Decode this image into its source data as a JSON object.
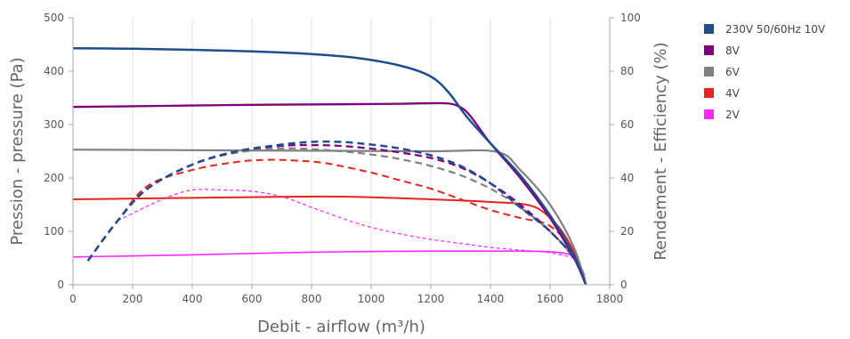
{
  "chart_data": {
    "type": "line",
    "xlabel": "Debit - airflow (m³/h)",
    "ylabel": "Pression - pressure (Pa)",
    "y2label": "Rendement - Efficiency (%)",
    "xlim": [
      0,
      1800
    ],
    "ylim": [
      0,
      500
    ],
    "y2lim": [
      0,
      100
    ],
    "x_ticks": [
      "0",
      "200",
      "400",
      "600",
      "800",
      "1000",
      "1200",
      "1400",
      "1600",
      "1800"
    ],
    "y_ticks": [
      "0",
      "100",
      "200",
      "300",
      "400",
      "500"
    ],
    "y2_ticks": [
      "0",
      "20",
      "40",
      "60",
      "80",
      "100"
    ],
    "grid": "vertical",
    "legend_position": "right",
    "series": [
      {
        "name": "230V 50/60Hz 10V",
        "color": "#1f4e8c",
        "pressure": [
          [
            0,
            443
          ],
          [
            200,
            442
          ],
          [
            400,
            440
          ],
          [
            600,
            437
          ],
          [
            800,
            432
          ],
          [
            950,
            425
          ],
          [
            1100,
            410
          ],
          [
            1200,
            390
          ],
          [
            1260,
            360
          ],
          [
            1320,
            315
          ],
          [
            1400,
            265
          ],
          [
            1500,
            205
          ],
          [
            1600,
            130
          ],
          [
            1680,
            55
          ],
          [
            1720,
            0
          ]
        ],
        "efficiency": [
          [
            50,
            9
          ],
          [
            150,
            24
          ],
          [
            250,
            36
          ],
          [
            400,
            45
          ],
          [
            550,
            50
          ],
          [
            700,
            52.5
          ],
          [
            800,
            53.5
          ],
          [
            900,
            53.5
          ],
          [
            1000,
            52.5
          ],
          [
            1100,
            51
          ],
          [
            1200,
            48.5
          ],
          [
            1300,
            44.5
          ],
          [
            1400,
            38
          ],
          [
            1500,
            29
          ],
          [
            1600,
            20
          ],
          [
            1680,
            10
          ],
          [
            1720,
            0
          ]
        ]
      },
      {
        "name": "8V",
        "color": "#800080",
        "pressure": [
          [
            0,
            333
          ],
          [
            300,
            335
          ],
          [
            600,
            337
          ],
          [
            900,
            338
          ],
          [
            1100,
            339
          ],
          [
            1240,
            340
          ],
          [
            1290,
            335
          ],
          [
            1330,
            318
          ],
          [
            1400,
            265
          ],
          [
            1500,
            200
          ],
          [
            1600,
            125
          ],
          [
            1680,
            50
          ],
          [
            1720,
            0
          ]
        ],
        "efficiency": [
          [
            50,
            9
          ],
          [
            150,
            24
          ],
          [
            250,
            36
          ],
          [
            400,
            45
          ],
          [
            550,
            50
          ],
          [
            700,
            52
          ],
          [
            800,
            52.3
          ],
          [
            900,
            52
          ],
          [
            1000,
            51
          ],
          [
            1100,
            49.5
          ],
          [
            1200,
            47.5
          ],
          [
            1300,
            44
          ],
          [
            1400,
            38
          ],
          [
            1500,
            30
          ],
          [
            1600,
            20
          ],
          [
            1680,
            10
          ],
          [
            1720,
            0
          ]
        ]
      },
      {
        "name": "6V",
        "color": "#808080",
        "pressure": [
          [
            0,
            253
          ],
          [
            400,
            252
          ],
          [
            800,
            251
          ],
          [
            1200,
            250
          ],
          [
            1420,
            249
          ],
          [
            1500,
            215
          ],
          [
            1600,
            150
          ],
          [
            1680,
            70
          ],
          [
            1720,
            0
          ]
        ],
        "efficiency": [
          [
            50,
            9
          ],
          [
            150,
            24
          ],
          [
            250,
            36
          ],
          [
            400,
            45
          ],
          [
            550,
            49.5
          ],
          [
            700,
            51
          ],
          [
            800,
            50.8
          ],
          [
            900,
            50
          ],
          [
            1000,
            48.8
          ],
          [
            1100,
            47
          ],
          [
            1200,
            44.5
          ],
          [
            1300,
            41
          ],
          [
            1400,
            36
          ],
          [
            1500,
            29
          ],
          [
            1600,
            20
          ],
          [
            1680,
            10
          ],
          [
            1720,
            0
          ]
        ]
      },
      {
        "name": "4V",
        "color": "#e8231f",
        "pressure": [
          [
            0,
            160
          ],
          [
            300,
            162
          ],
          [
            600,
            164
          ],
          [
            900,
            165
          ],
          [
            1200,
            160
          ],
          [
            1400,
            155
          ],
          [
            1520,
            150
          ],
          [
            1580,
            135
          ],
          [
            1640,
            100
          ],
          [
            1690,
            50
          ],
          [
            1720,
            0
          ]
        ],
        "efficiency": [
          [
            50,
            9
          ],
          [
            150,
            24
          ],
          [
            250,
            37
          ],
          [
            400,
            43
          ],
          [
            550,
            46
          ],
          [
            650,
            46.8
          ],
          [
            750,
            46.5
          ],
          [
            850,
            45.5
          ],
          [
            1000,
            42
          ],
          [
            1100,
            39
          ],
          [
            1200,
            36
          ],
          [
            1300,
            32
          ],
          [
            1400,
            28
          ],
          [
            1500,
            25
          ],
          [
            1600,
            22
          ],
          [
            1680,
            12
          ],
          [
            1720,
            0
          ]
        ]
      },
      {
        "name": "2V",
        "color": "#ff26ff",
        "pressure": [
          [
            0,
            52
          ],
          [
            400,
            56
          ],
          [
            800,
            61
          ],
          [
            1200,
            63
          ],
          [
            1500,
            63
          ],
          [
            1620,
            61
          ],
          [
            1680,
            52
          ],
          [
            1710,
            25
          ],
          [
            1720,
            0
          ]
        ],
        "efficiency": [
          [
            150,
            24
          ],
          [
            300,
            32
          ],
          [
            400,
            35.5
          ],
          [
            500,
            35.5
          ],
          [
            600,
            35
          ],
          [
            700,
            33
          ],
          [
            800,
            29
          ],
          [
            900,
            25
          ],
          [
            1000,
            21.5
          ],
          [
            1100,
            19
          ],
          [
            1200,
            17
          ],
          [
            1300,
            15.5
          ],
          [
            1400,
            14
          ],
          [
            1500,
            13
          ],
          [
            1600,
            12
          ],
          [
            1680,
            10
          ]
        ]
      }
    ]
  }
}
